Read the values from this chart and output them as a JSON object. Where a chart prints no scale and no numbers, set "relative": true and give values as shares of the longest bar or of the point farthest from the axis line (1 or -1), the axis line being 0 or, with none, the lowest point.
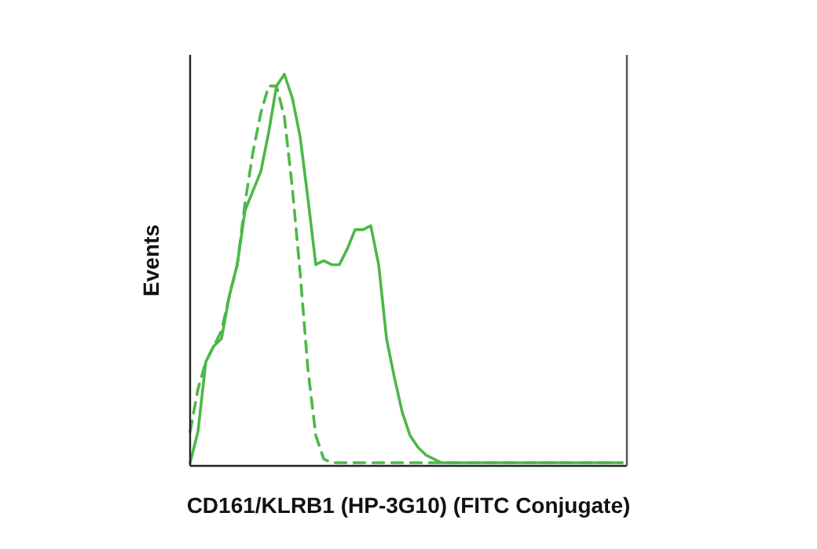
{
  "chart_data": {
    "type": "line",
    "relative": true,
    "xlabel": "CD161/KLRB1 (HP-3G10) (FITC Conjugate)",
    "ylabel": "Events",
    "categories": [
      null,
      null,
      null,
      null,
      null,
      null,
      null,
      null,
      null,
      null,
      null,
      null,
      null,
      null,
      null,
      null,
      null,
      null,
      null,
      null,
      null,
      null,
      null,
      null,
      null,
      null,
      null,
      null,
      null,
      null,
      null,
      null,
      null,
      null,
      null,
      null,
      null,
      null,
      null,
      null,
      null,
      null,
      null,
      null,
      null,
      null,
      null,
      null,
      null,
      null,
      null,
      null,
      null,
      null,
      null,
      null
    ],
    "series": [
      {
        "color": "#4cb848",
        "line_style": "solid",
        "values": [
          0,
          0.08,
          0.26,
          0.3,
          0.32,
          0.43,
          0.51,
          0.65,
          0.7,
          0.75,
          0.85,
          0.97,
          1,
          0.94,
          0.84,
          0.68,
          0.51,
          0.52,
          0.51,
          0.51,
          0.55,
          0.6,
          0.6,
          0.61,
          0.51,
          0.32,
          0.22,
          0.13,
          0.07,
          0.04,
          0.02,
          0.01,
          0,
          0,
          0,
          0,
          0,
          0,
          0,
          0,
          0,
          0,
          0,
          0,
          0,
          0,
          0,
          0,
          0,
          0,
          0,
          0,
          0,
          0,
          0,
          0
        ]
      },
      {
        "color": "#4cb848",
        "line_style": "dashed",
        "values": [
          0.08,
          0.19,
          0.26,
          0.3,
          0.34,
          0.43,
          0.51,
          0.67,
          0.8,
          0.9,
          0.97,
          0.97,
          0.89,
          0.71,
          0.49,
          0.24,
          0.07,
          0.01,
          0,
          0,
          0,
          0,
          0,
          0,
          0,
          0,
          0,
          0,
          0,
          0,
          0,
          0,
          0,
          0,
          0,
          0,
          0,
          0,
          0,
          0,
          0,
          0,
          0,
          0,
          0,
          0,
          0,
          0,
          0,
          0,
          0,
          0,
          0,
          0,
          0,
          0
        ]
      }
    ]
  }
}
